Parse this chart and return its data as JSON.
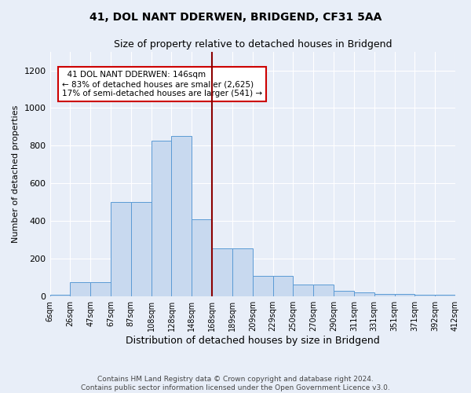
{
  "title": "41, DOL NANT DDERWEN, BRIDGEND, CF31 5AA",
  "subtitle": "Size of property relative to detached houses in Bridgend",
  "xlabel": "Distribution of detached houses by size in Bridgend",
  "ylabel": "Number of detached properties",
  "bar_values": [
    10,
    75,
    75,
    500,
    500,
    825,
    850,
    410,
    255,
    255,
    110,
    110,
    65,
    65,
    30,
    20,
    15,
    15,
    10,
    10
  ],
  "bin_labels": [
    "6sqm",
    "26sqm",
    "47sqm",
    "67sqm",
    "87sqm",
    "108sqm",
    "128sqm",
    "148sqm",
    "168sqm",
    "189sqm",
    "209sqm",
    "229sqm",
    "250sqm",
    "270sqm",
    "290sqm",
    "311sqm",
    "331sqm",
    "351sqm",
    "371sqm",
    "392sqm",
    "412sqm"
  ],
  "bar_color": "#c8d9ef",
  "bar_edge_color": "#5b9bd5",
  "property_line_x": 7.5,
  "property_line_color": "#8b0000",
  "annotation_text": "  41 DOL NANT DDERWEN: 146sqm\n← 83% of detached houses are smaller (2,625)\n17% of semi-detached houses are larger (541) →",
  "annotation_box_color": "white",
  "annotation_box_edge_color": "#cc0000",
  "ylim": [
    0,
    1300
  ],
  "yticks": [
    0,
    200,
    400,
    600,
    800,
    1000,
    1200
  ],
  "footer_text": "Contains HM Land Registry data © Crown copyright and database right 2024.\nContains public sector information licensed under the Open Government Licence v3.0.",
  "bg_color": "#e8eef8",
  "plot_bg_color": "#e8eef8"
}
